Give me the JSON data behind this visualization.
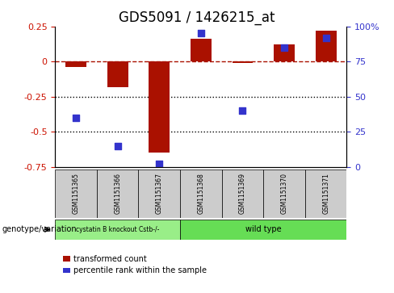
{
  "title": "GDS5091 / 1426215_at",
  "categories": [
    "GSM1151365",
    "GSM1151366",
    "GSM1151367",
    "GSM1151368",
    "GSM1151369",
    "GSM1151370",
    "GSM1151371"
  ],
  "red_values": [
    -0.04,
    -0.18,
    -0.65,
    0.16,
    -0.01,
    0.12,
    0.22
  ],
  "blue_percentiles": [
    35,
    15,
    2,
    95,
    40,
    85,
    92
  ],
  "ylim": [
    -0.75,
    0.25
  ],
  "right_ylim": [
    0,
    100
  ],
  "right_yticks": [
    0,
    25,
    50,
    75,
    100
  ],
  "right_yticklabels": [
    "0",
    "25",
    "50",
    "75",
    "100%"
  ],
  "left_yticks": [
    -0.75,
    -0.5,
    -0.25,
    0,
    0.25
  ],
  "left_yticklabels": [
    "-0.75",
    "-0.5",
    "-0.25",
    "0",
    "0.25"
  ],
  "dotted_lines": [
    -0.25,
    -0.5
  ],
  "red_color": "#aa1100",
  "blue_color": "#3333cc",
  "bar_width": 0.5,
  "group1_label": "cystatin B knockout Cstb-/-",
  "group2_label": "wild type",
  "group1_indices": [
    0,
    1,
    2
  ],
  "group2_indices": [
    3,
    4,
    5,
    6
  ],
  "group1_color": "#99ee88",
  "group2_color": "#66dd55",
  "bg_color": "#cccccc",
  "legend_red_label": "transformed count",
  "legend_blue_label": "percentile rank within the sample",
  "ylabel_left_color": "#cc1100",
  "ylabel_right_color": "#3333cc",
  "title_fontsize": 12,
  "tick_fontsize": 8,
  "label_fontsize": 8
}
